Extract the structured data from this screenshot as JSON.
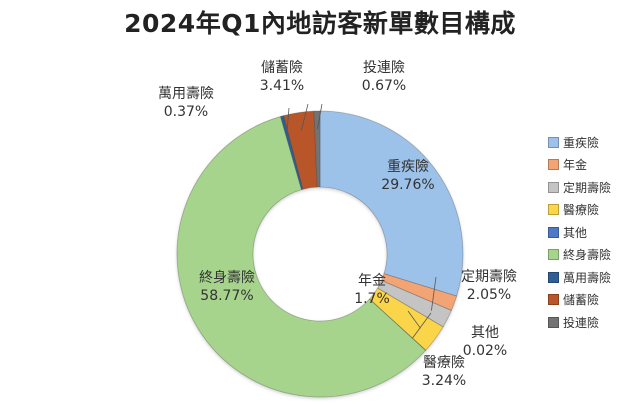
{
  "chart_data": {
    "type": "pie",
    "variant": "donut",
    "title": "2024年Q1內地訪客新單數目構成",
    "legend_position": "right",
    "series": [
      {
        "name": "重疾險",
        "value": 29.76,
        "label": "29.76%",
        "color": "#9cc2ea"
      },
      {
        "name": "年金",
        "value": 1.7,
        "label": "1.7%",
        "color": "#f2a474"
      },
      {
        "name": "定期壽險",
        "value": 2.05,
        "label": "2.05%",
        "color": "#c4c4c4"
      },
      {
        "name": "醫療險",
        "value": 3.24,
        "label": "3.24%",
        "color": "#fbd54a"
      },
      {
        "name": "其他",
        "value": 0.02,
        "label": "0.02%",
        "color": "#4d79c7"
      },
      {
        "name": "終身壽險",
        "value": 58.77,
        "label": "58.77%",
        "color": "#a6d48c"
      },
      {
        "name": "萬用壽險",
        "value": 0.37,
        "label": "0.37%",
        "color": "#2f5f93"
      },
      {
        "name": "儲蓄險",
        "value": 3.41,
        "label": "3.41%",
        "color": "#b8562a"
      },
      {
        "name": "投連險",
        "value": 0.67,
        "label": "0.67%",
        "color": "#737373"
      }
    ]
  }
}
